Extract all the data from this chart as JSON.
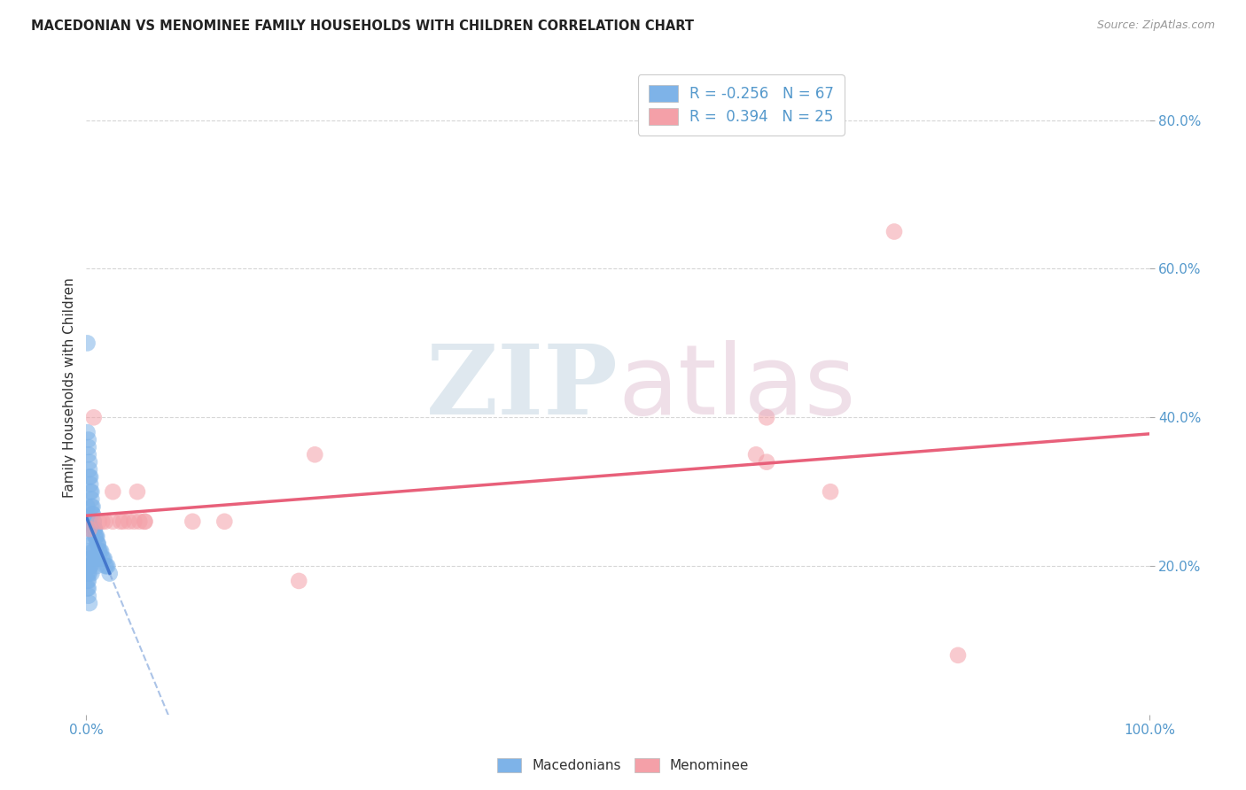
{
  "title": "MACEDONIAN VS MENOMINEE FAMILY HOUSEHOLDS WITH CHILDREN CORRELATION CHART",
  "source": "Source: ZipAtlas.com",
  "ylabel": "Family Households with Children",
  "xlim": [
    0.0,
    1.0
  ],
  "ylim": [
    0.0,
    0.88
  ],
  "yticks": [
    0.2,
    0.4,
    0.6,
    0.8
  ],
  "ytick_labels": [
    "20.0%",
    "40.0%",
    "60.0%",
    "80.0%"
  ],
  "xticks": [
    0.0,
    1.0
  ],
  "xtick_labels": [
    "0.0%",
    "100.0%"
  ],
  "macedonian_R": -0.256,
  "macedonian_N": 67,
  "menominee_R": 0.394,
  "menominee_N": 25,
  "macedonian_color": "#7EB3E8",
  "menominee_color": "#F4A0A8",
  "macedonian_line_solid_color": "#4477CC",
  "macedonian_line_dash_color": "#88AADD",
  "menominee_line_color": "#E8607A",
  "background_color": "#FFFFFF",
  "grid_color": "#CCCCCC",
  "tick_color": "#5599CC",
  "mac_x": [
    0.001,
    0.001,
    0.002,
    0.002,
    0.002,
    0.003,
    0.003,
    0.003,
    0.004,
    0.004,
    0.004,
    0.005,
    0.005,
    0.005,
    0.006,
    0.006,
    0.006,
    0.007,
    0.007,
    0.007,
    0.008,
    0.008,
    0.008,
    0.009,
    0.009,
    0.01,
    0.01,
    0.011,
    0.011,
    0.012,
    0.012,
    0.013,
    0.014,
    0.015,
    0.016,
    0.017,
    0.018,
    0.019,
    0.02,
    0.022,
    0.001,
    0.002,
    0.003,
    0.004,
    0.005,
    0.006,
    0.007,
    0.008,
    0.009,
    0.01,
    0.002,
    0.003,
    0.004,
    0.005,
    0.002,
    0.003,
    0.004,
    0.001,
    0.002,
    0.003,
    0.001,
    0.002,
    0.001,
    0.002,
    0.001,
    0.002,
    0.003
  ],
  "mac_y": [
    0.5,
    0.38,
    0.37,
    0.36,
    0.35,
    0.34,
    0.33,
    0.32,
    0.32,
    0.31,
    0.3,
    0.3,
    0.29,
    0.28,
    0.28,
    0.27,
    0.27,
    0.26,
    0.26,
    0.25,
    0.25,
    0.25,
    0.24,
    0.24,
    0.24,
    0.24,
    0.23,
    0.23,
    0.23,
    0.22,
    0.22,
    0.22,
    0.22,
    0.21,
    0.21,
    0.21,
    0.2,
    0.2,
    0.2,
    0.19,
    0.28,
    0.26,
    0.25,
    0.24,
    0.23,
    0.22,
    0.22,
    0.21,
    0.21,
    0.2,
    0.21,
    0.2,
    0.2,
    0.19,
    0.22,
    0.21,
    0.2,
    0.2,
    0.19,
    0.19,
    0.19,
    0.18,
    0.18,
    0.17,
    0.17,
    0.16,
    0.15
  ],
  "men_x": [
    0.003,
    0.007,
    0.012,
    0.018,
    0.025,
    0.032,
    0.04,
    0.048,
    0.055,
    0.1,
    0.13,
    0.63,
    0.64,
    0.7,
    0.76,
    0.82,
    0.2,
    0.215,
    0.64,
    0.015,
    0.025,
    0.035,
    0.045,
    0.05,
    0.055
  ],
  "men_y": [
    0.25,
    0.4,
    0.26,
    0.26,
    0.3,
    0.26,
    0.26,
    0.3,
    0.26,
    0.26,
    0.26,
    0.35,
    0.34,
    0.3,
    0.65,
    0.08,
    0.18,
    0.35,
    0.4,
    0.26,
    0.26,
    0.26,
    0.26,
    0.26,
    0.26
  ]
}
